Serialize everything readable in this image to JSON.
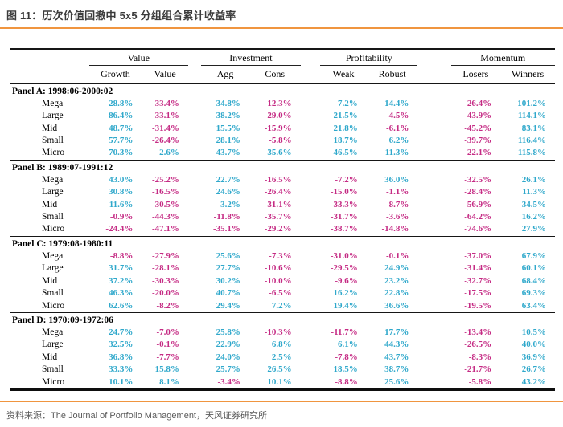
{
  "title": "图 11：历次价值回撤中 5x5 分组组合累计收益率",
  "source_note": "资料来源：The Journal of Portfolio Management，天风证券研究所",
  "colors": {
    "accent_orange": "#F0953F",
    "positive_value": "#2FA8CB",
    "negative_value": "#C52B84",
    "title_text": "#3B3B3B",
    "source_text": "#5A5A5A"
  },
  "chart_data": {
    "type": "table",
    "title": "图 11：历次价值回撤中 5x5 分组组合累计收益率",
    "groups": [
      {
        "label": "Value",
        "columns": [
          "Growth",
          "Value"
        ]
      },
      {
        "label": "Investment",
        "columns": [
          "Agg",
          "Cons"
        ]
      },
      {
        "label": "Profitability",
        "columns": [
          "Weak",
          "Robust"
        ]
      },
      {
        "label": "Momentum",
        "columns": [
          "Losers",
          "Winners"
        ]
      }
    ],
    "panels": [
      {
        "label": "Panel A: 1998:06-2000:02",
        "rows": [
          {
            "label": "Mega",
            "values": [
              "28.8%",
              "-33.4%",
              "34.8%",
              "-12.3%",
              "7.2%",
              "14.4%",
              "-26.4%",
              "101.2%"
            ]
          },
          {
            "label": "Large",
            "values": [
              "86.4%",
              "-33.1%",
              "38.2%",
              "-29.0%",
              "21.5%",
              "-4.5%",
              "-43.9%",
              "114.1%"
            ]
          },
          {
            "label": "Mid",
            "values": [
              "48.7%",
              "-31.4%",
              "15.5%",
              "-15.9%",
              "21.8%",
              "-6.1%",
              "-45.2%",
              "83.1%"
            ]
          },
          {
            "label": "Small",
            "values": [
              "57.7%",
              "-26.4%",
              "28.1%",
              "-5.8%",
              "18.7%",
              "6.2%",
              "-39.7%",
              "116.4%"
            ]
          },
          {
            "label": "Micro",
            "values": [
              "70.3%",
              "2.6%",
              "43.7%",
              "35.6%",
              "46.5%",
              "11.3%",
              "-22.1%",
              "115.8%"
            ]
          }
        ]
      },
      {
        "label": "Panel B: 1989:07-1991:12",
        "rows": [
          {
            "label": "Mega",
            "values": [
              "43.0%",
              "-25.2%",
              "22.7%",
              "-16.5%",
              "-7.2%",
              "36.0%",
              "-32.5%",
              "26.1%"
            ]
          },
          {
            "label": "Large",
            "values": [
              "30.8%",
              "-16.5%",
              "24.6%",
              "-26.4%",
              "-15.0%",
              "-1.1%",
              "-28.4%",
              "11.3%"
            ]
          },
          {
            "label": "Mid",
            "values": [
              "11.6%",
              "-30.5%",
              "3.2%",
              "-31.1%",
              "-33.3%",
              "-8.7%",
              "-56.9%",
              "34.5%"
            ]
          },
          {
            "label": "Small",
            "values": [
              "-0.9%",
              "-44.3%",
              "-11.8%",
              "-35.7%",
              "-31.7%",
              "-3.6%",
              "-64.2%",
              "16.2%"
            ]
          },
          {
            "label": "Micro",
            "values": [
              "-24.4%",
              "-47.1%",
              "-35.1%",
              "-29.2%",
              "-38.7%",
              "-14.8%",
              "-74.6%",
              "27.9%"
            ]
          }
        ]
      },
      {
        "label": "Panel C: 1979:08-1980:11",
        "rows": [
          {
            "label": "Mega",
            "values": [
              "-8.8%",
              "-27.9%",
              "25.6%",
              "-7.3%",
              "-31.0%",
              "-0.1%",
              "-37.0%",
              "67.9%"
            ]
          },
          {
            "label": "Large",
            "values": [
              "31.7%",
              "-28.1%",
              "27.7%",
              "-10.6%",
              "-29.5%",
              "24.9%",
              "-31.4%",
              "60.1%"
            ]
          },
          {
            "label": "Mid",
            "values": [
              "37.2%",
              "-30.3%",
              "30.2%",
              "-10.0%",
              "-9.6%",
              "23.2%",
              "-32.7%",
              "68.4%"
            ]
          },
          {
            "label": "Small",
            "values": [
              "46.3%",
              "-20.0%",
              "40.7%",
              "-6.5%",
              "16.2%",
              "22.8%",
              "-17.5%",
              "69.3%"
            ]
          },
          {
            "label": "Micro",
            "values": [
              "62.6%",
              "-8.2%",
              "29.4%",
              "7.2%",
              "19.4%",
              "36.6%",
              "-19.5%",
              "63.4%"
            ]
          }
        ]
      },
      {
        "label": "Panel D: 1970:09-1972:06",
        "rows": [
          {
            "label": "Mega",
            "values": [
              "24.7%",
              "-7.0%",
              "25.8%",
              "-10.3%",
              "-11.7%",
              "17.7%",
              "-13.4%",
              "10.5%"
            ]
          },
          {
            "label": "Large",
            "values": [
              "32.5%",
              "-0.1%",
              "22.9%",
              "6.8%",
              "6.1%",
              "44.3%",
              "-26.5%",
              "40.0%"
            ]
          },
          {
            "label": "Mid",
            "values": [
              "36.8%",
              "-7.7%",
              "24.0%",
              "2.5%",
              "-7.8%",
              "43.7%",
              "-8.3%",
              "36.9%"
            ]
          },
          {
            "label": "Small",
            "values": [
              "33.3%",
              "15.8%",
              "25.7%",
              "26.5%",
              "18.5%",
              "38.7%",
              "-21.7%",
              "26.7%"
            ]
          },
          {
            "label": "Micro",
            "values": [
              "10.1%",
              "8.1%",
              "-3.4%",
              "10.1%",
              "-8.8%",
              "25.6%",
              "-5.8%",
              "43.2%"
            ]
          }
        ]
      }
    ]
  }
}
